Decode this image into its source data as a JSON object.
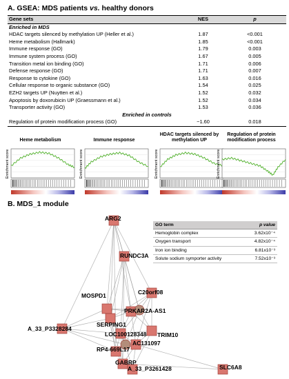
{
  "panel_a": {
    "title_prefix": "A. GSEA: MDS patients ",
    "title_vs": "vs.",
    "title_suffix": " healthy donors",
    "headers": {
      "gene_sets": "Gene sets",
      "nes": "NES",
      "p": "p"
    },
    "enriched_mds": "Enriched in MDS",
    "rows": [
      {
        "name": "HDAC targets silenced by methylation UP (Heller et al.)",
        "nes": "1.87",
        "p": "<0.001"
      },
      {
        "name": "Heme metabolism (Hallmark)",
        "nes": "1.85",
        "p": "<0.001"
      },
      {
        "name": "Immune response (GO)",
        "nes": "1.79",
        "p": "0.003"
      },
      {
        "name": "Immune system process (GO)",
        "nes": "1.67",
        "p": "0.005"
      },
      {
        "name": "Transition metal ion binding (GO)",
        "nes": "1.71",
        "p": "0.006"
      },
      {
        "name": "Defense response (GO)",
        "nes": "1.71",
        "p": "0.007"
      },
      {
        "name": "Response to cytokine (GO)",
        "nes": "1.63",
        "p": "0.016"
      },
      {
        "name": "Cellular response to organic substance (GO)",
        "nes": "1.54",
        "p": "0.025"
      },
      {
        "name": "EZH2 targets UP (Nuytten et al.)",
        "nes": "1.52",
        "p": "0.032"
      },
      {
        "name": "Apoptosis by doxorubicin UP (Graessmann et al.)",
        "nes": "1.52",
        "p": "0.034"
      },
      {
        "name": "Transporter activity (GO)",
        "nes": "1.53",
        "p": "0.036"
      }
    ],
    "enriched_controls": "Enriched in controls",
    "control_rows": [
      {
        "name": "Regulation of protein modification process (GO)",
        "nes": "−1.60",
        "p": "0.018"
      }
    ]
  },
  "plots": [
    {
      "title": "Heme metabolism",
      "ylabel": "Enrichment score"
    },
    {
      "title": "Immune response",
      "ylabel": "Enrichment score"
    },
    {
      "title": "HDAC targets silenced by methylation UP",
      "ylabel": "Enrichment score"
    },
    {
      "title": "Regulation of protein modification process",
      "ylabel": "Enrichment score"
    }
  ],
  "panel_b": {
    "title": "B. MDS_1 module",
    "go_table": {
      "headers": {
        "term": "GO term",
        "p": "p value"
      },
      "rows": [
        {
          "term": "Hemoglobin complex",
          "p": "3.62x10⁻⁴"
        },
        {
          "term": "Oxygen transport",
          "p": "4.82x10⁻⁴"
        },
        {
          "term": "Iron ion binding",
          "p": "6.81x10⁻³"
        },
        {
          "term": "Solute sodium symporter activity",
          "p": "7.52x10⁻³"
        }
      ]
    },
    "genes": {
      "arg2": "ARG2",
      "rundc3a": "RUNDC3A",
      "mospd1": "MOSPD1",
      "c20orf08": "C20orf08",
      "prkar2a": "PRKAR2A-AS1",
      "a33_3328284": "A_33_P3328284",
      "serping1": "SERPING1",
      "loc100128348": "LOC100128348",
      "trim10": "TRIM10",
      "ac131097": "AC131097",
      "rp4": "RP4-669L17",
      "gabrp": "GABRP",
      "a33_3261428": "A_33_P3261428",
      "slc6a8": "SLC6A8"
    }
  },
  "colors": {
    "node_fill": "#d9776f",
    "node_stroke": "#a0413a",
    "gsea_line": "#4caf26",
    "edge": "#9a9a9a"
  }
}
